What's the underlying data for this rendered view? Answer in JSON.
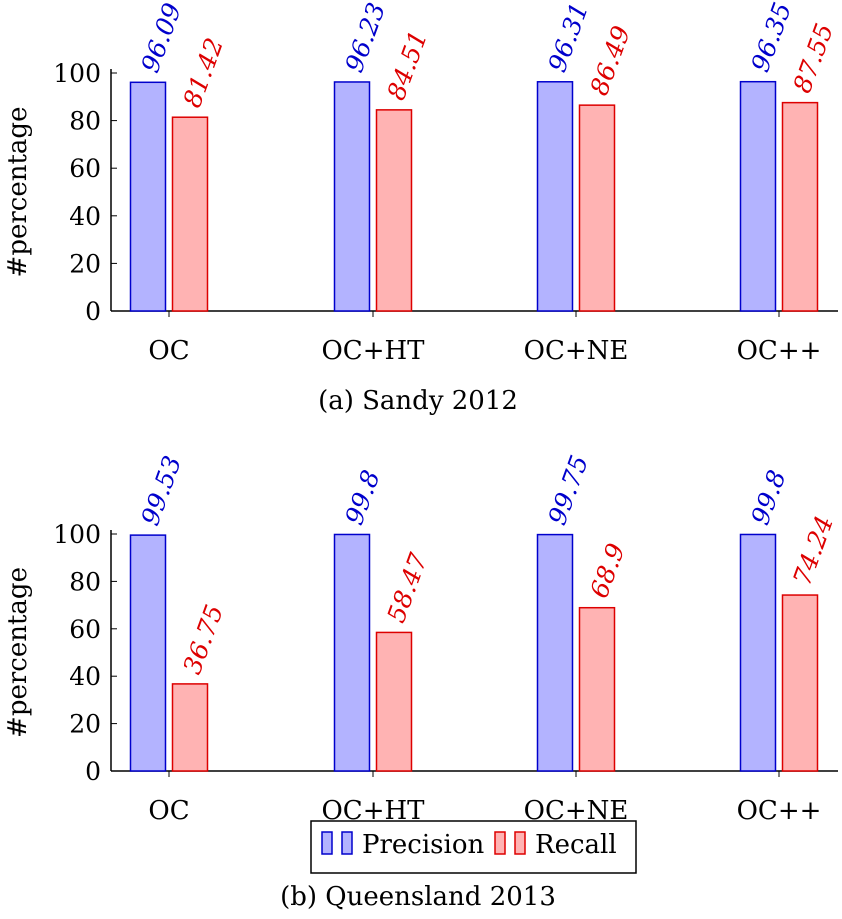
{
  "chart_data": [
    {
      "type": "bar",
      "caption": "(a) Sandy 2012",
      "ylabel": "#percentage",
      "ylim": [
        0,
        100
      ],
      "yticks": [
        0,
        20,
        40,
        60,
        80,
        100
      ],
      "categories": [
        "OC",
        "OC+HT",
        "OC+NE",
        "OC++"
      ],
      "series": [
        {
          "name": "Precision",
          "values": [
            96.09,
            96.23,
            96.31,
            96.35
          ]
        },
        {
          "name": "Recall",
          "values": [
            81.42,
            84.51,
            86.49,
            87.55
          ]
        }
      ]
    },
    {
      "type": "bar",
      "caption": "(b) Queensland 2013",
      "ylabel": "#percentage",
      "ylim": [
        0,
        100
      ],
      "yticks": [
        0,
        20,
        40,
        60,
        80,
        100
      ],
      "categories": [
        "OC",
        "OC+HT",
        "OC+NE",
        "OC++"
      ],
      "series": [
        {
          "name": "Precision",
          "values": [
            99.53,
            99.8,
            99.75,
            99.8
          ]
        },
        {
          "name": "Recall",
          "values": [
            36.75,
            58.47,
            68.9,
            74.24
          ]
        }
      ]
    }
  ],
  "legend": {
    "placement": "bottom-center",
    "items": [
      {
        "label": "Precision",
        "fill": "#b3b3ff",
        "stroke": "#0000cc",
        "text_color": "#0000cc"
      },
      {
        "label": "Recall",
        "fill": "#ffb3b3",
        "stroke": "#dd0000",
        "text_color": "#dd0000"
      }
    ]
  },
  "colors": {
    "precision_fill": "#b3b3ff",
    "precision_stroke": "#0000cc",
    "precision_label": "#0000cc",
    "recall_fill": "#ffb3b3",
    "recall_stroke": "#dd0000",
    "recall_label": "#dd0000"
  }
}
